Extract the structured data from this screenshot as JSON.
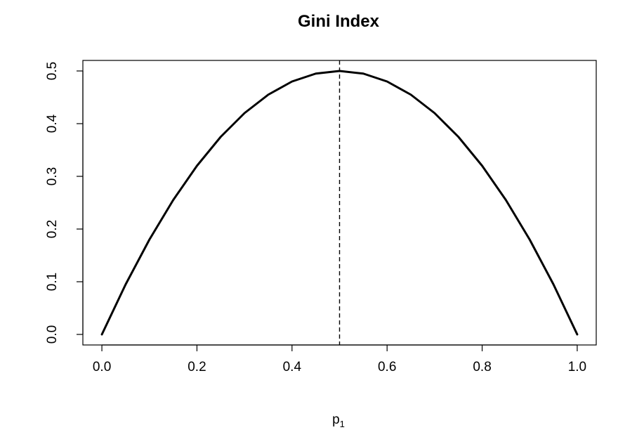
{
  "chart_data": {
    "type": "line",
    "title": "Gini Index",
    "xlabel": "p",
    "xlabel_subscript": "1",
    "ylabel": "",
    "xlim": [
      -0.04,
      1.04
    ],
    "ylim": [
      -0.02,
      0.52
    ],
    "x_ticks": [
      0.0,
      0.2,
      0.4,
      0.6,
      0.8,
      1.0
    ],
    "x_tick_labels": [
      "0.0",
      "0.2",
      "0.4",
      "0.6",
      "0.8",
      "1.0"
    ],
    "y_ticks": [
      0.0,
      0.1,
      0.2,
      0.3,
      0.4,
      0.5
    ],
    "y_tick_labels": [
      "0.0",
      "0.1",
      "0.2",
      "0.3",
      "0.4",
      "0.5"
    ],
    "series": [
      {
        "x": [
          0.0,
          0.05,
          0.1,
          0.15,
          0.2,
          0.25,
          0.3,
          0.35,
          0.4,
          0.45,
          0.5,
          0.55,
          0.6,
          0.65,
          0.7,
          0.75,
          0.8,
          0.85,
          0.9,
          0.95,
          1.0
        ],
        "y": [
          0.0,
          0.095,
          0.18,
          0.255,
          0.32,
          0.375,
          0.42,
          0.455,
          0.48,
          0.495,
          0.5,
          0.495,
          0.48,
          0.455,
          0.42,
          0.375,
          0.32,
          0.255,
          0.18,
          0.095,
          0.0
        ]
      }
    ],
    "vertical_line": {
      "x": 0.5,
      "style": "dashed"
    },
    "grid": false,
    "colors": {
      "line": "#000000",
      "background": "#ffffff"
    }
  }
}
